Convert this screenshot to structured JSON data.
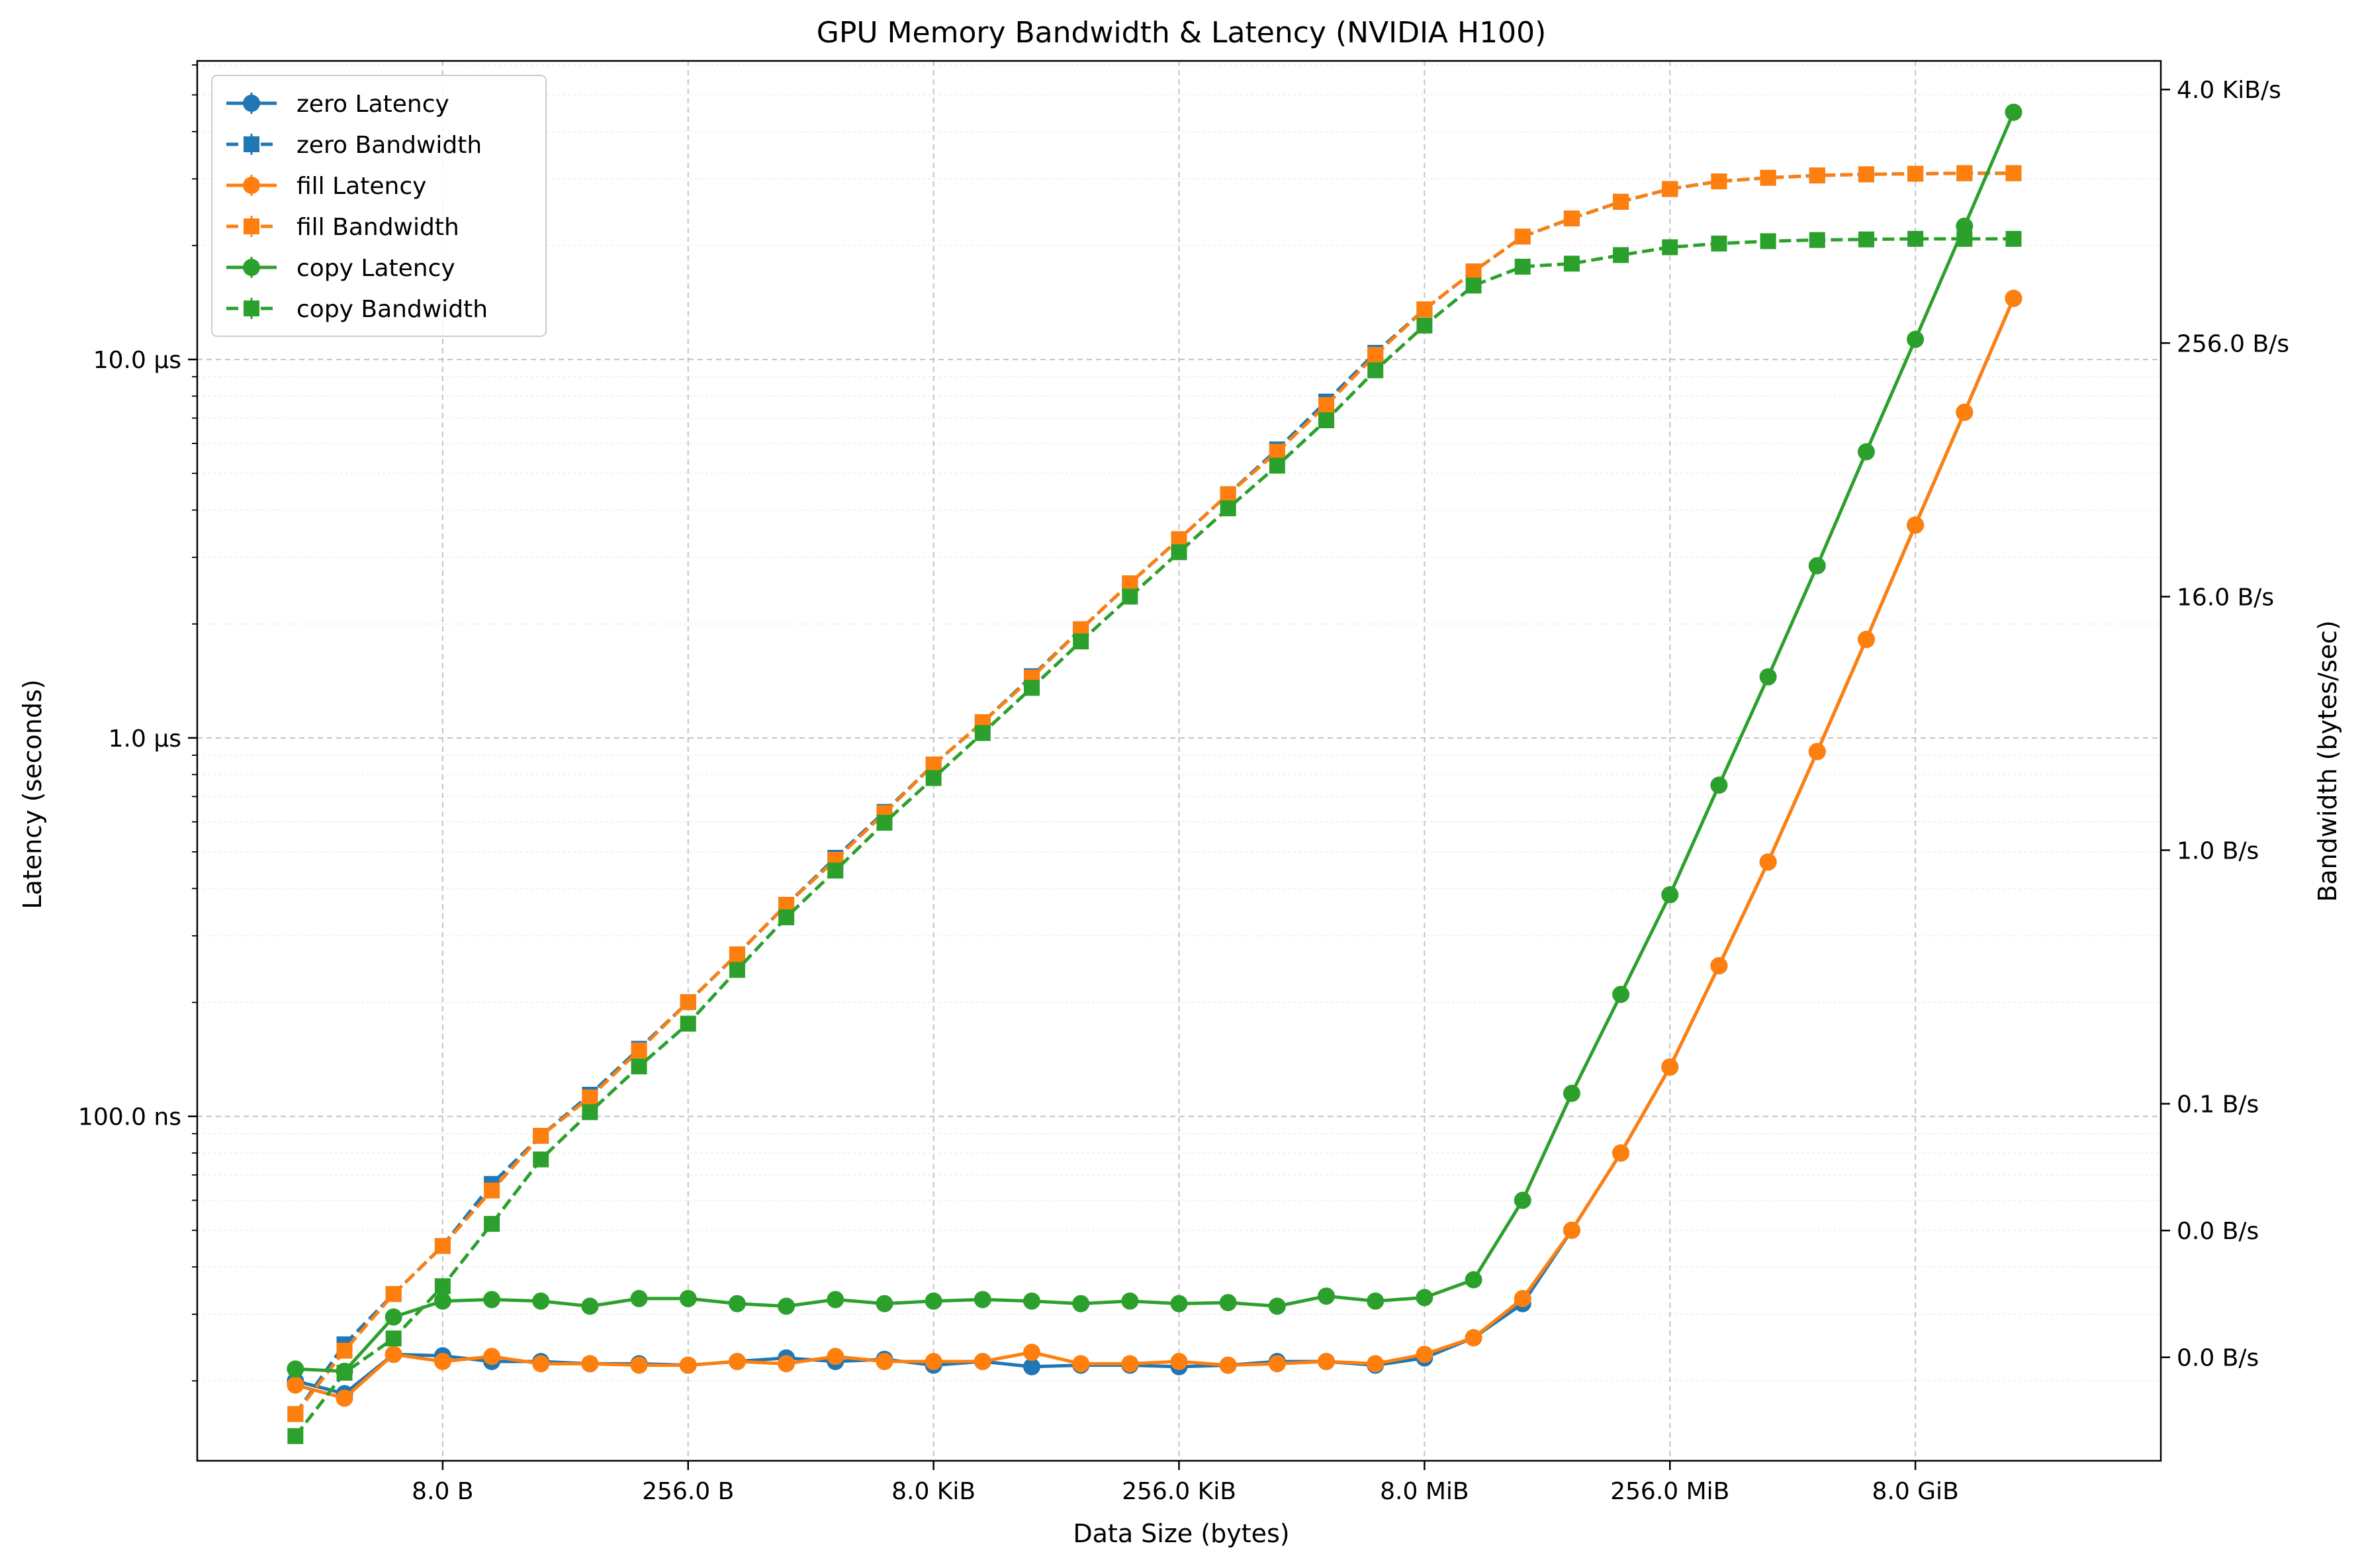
{
  "chart_data": {
    "type": "line",
    "title": "GPU Memory Bandwidth & Latency (NVIDIA H100)",
    "xlabel": "Data Size (bytes)",
    "ylabel_left": "Latency (seconds)",
    "ylabel_right": "Bandwidth (bytes/sec)",
    "x_scale": "log2",
    "x_unit": "bytes",
    "x_range": [
      0.25,
      274877906944
    ],
    "x_ticks": [
      {
        "value": 8,
        "label": "8.0 B"
      },
      {
        "value": 256,
        "label": "256.0 B"
      },
      {
        "value": 8192,
        "label": "8.0 KiB"
      },
      {
        "value": 262144,
        "label": "256.0 KiB"
      },
      {
        "value": 8388608,
        "label": "8.0 MiB"
      },
      {
        "value": 268435456,
        "label": "256.0 MiB"
      },
      {
        "value": 8589934592,
        "label": "8.0 GiB"
      }
    ],
    "y_left_scale": "log10",
    "y_left_unit": "seconds",
    "y_left_range": [
      1.23e-08,
      6.15e-05
    ],
    "y_left_ticks": [
      {
        "value": 1e-07,
        "label": "100.0 ns"
      },
      {
        "value": 1e-06,
        "label": "1.0 µs"
      },
      {
        "value": 1e-05,
        "label": "10.0 µs"
      }
    ],
    "y_right_scale": "log2",
    "y_right_unit": "bytes/sec",
    "y_right_range": [
      0.00126,
      5600
    ],
    "y_right_ticks": [
      {
        "value": 0.00390625,
        "label": "0.0 B/s"
      },
      {
        "value": 0.015625,
        "label": "0.0 B/s"
      },
      {
        "value": 0.0625,
        "label": "0.1 B/s"
      },
      {
        "value": 1,
        "label": "1.0 B/s"
      },
      {
        "value": 16,
        "label": "16.0 B/s"
      },
      {
        "value": 256,
        "label": "256.0 B/s"
      },
      {
        "value": 4096,
        "label": "4.0 KiB/s"
      }
    ],
    "grid": true,
    "legend": "top-left",
    "x": [
      1,
      2,
      4,
      8,
      16,
      32,
      64,
      128,
      256,
      512,
      1024,
      2048,
      4096,
      8192,
      16384,
      32768,
      65536,
      131072,
      262144,
      524288,
      1048576,
      2097152,
      4194304,
      8388608,
      16777216,
      33554432,
      67108864,
      134217728,
      268435456,
      536870912,
      1073741824,
      2147483648,
      4294967296,
      8589934592,
      17179869184,
      34359738368
    ],
    "series": [
      {
        "name": "zero Latency",
        "axis": "left",
        "color": "#1f77b4",
        "linestyle": "solid",
        "marker": "circle",
        "values": [
          2e-08,
          1.85e-08,
          2.35e-08,
          2.33e-08,
          2.25e-08,
          2.25e-08,
          2.22e-08,
          2.22e-08,
          2.2e-08,
          2.25e-08,
          2.3e-08,
          2.25e-08,
          2.28e-08,
          2.2e-08,
          2.25e-08,
          2.18e-08,
          2.2e-08,
          2.2e-08,
          2.18e-08,
          2.2e-08,
          2.25e-08,
          2.25e-08,
          2.2e-08,
          2.3e-08,
          2.6e-08,
          3.2e-08,
          5e-08,
          8e-08,
          1.35e-07,
          2.5e-07,
          4.7e-07,
          9.2e-07,
          1.82e-06,
          3.65e-06,
          7.25e-06,
          1.45e-05
        ]
      },
      {
        "name": "zero Bandwidth",
        "axis": "right",
        "color": "#1f77b4",
        "linestyle": "dashed",
        "marker": "square",
        "values": [
          0.0021,
          0.0045,
          0.0078,
          0.0132,
          0.026,
          0.044,
          0.069,
          0.114,
          0.19,
          0.32,
          0.55,
          0.92,
          1.52,
          2.55,
          4.05,
          6.7,
          11.2,
          18.5,
          30,
          49,
          80,
          135,
          230,
          370,
          560,
          820,
          1000,
          1200,
          1380,
          1500,
          1560,
          1600,
          1620,
          1630,
          1640,
          1640
        ]
      },
      {
        "name": "fill Latency",
        "axis": "left",
        "color": "#ff7f0e",
        "linestyle": "solid",
        "marker": "circle",
        "values": [
          1.95e-08,
          1.8e-08,
          2.35e-08,
          2.25e-08,
          2.32e-08,
          2.22e-08,
          2.22e-08,
          2.2e-08,
          2.2e-08,
          2.25e-08,
          2.22e-08,
          2.32e-08,
          2.25e-08,
          2.25e-08,
          2.25e-08,
          2.38e-08,
          2.22e-08,
          2.22e-08,
          2.25e-08,
          2.2e-08,
          2.22e-08,
          2.25e-08,
          2.22e-08,
          2.35e-08,
          2.6e-08,
          3.3e-08,
          5e-08,
          8e-08,
          1.35e-07,
          2.5e-07,
          4.7e-07,
          9.2e-07,
          1.82e-06,
          3.65e-06,
          7.25e-06,
          1.45e-05
        ]
      },
      {
        "name": "fill Bandwidth",
        "axis": "right",
        "color": "#ff7f0e",
        "linestyle": "dashed",
        "marker": "square",
        "values": [
          0.0021,
          0.0042,
          0.0078,
          0.0132,
          0.0242,
          0.044,
          0.067,
          0.112,
          0.19,
          0.32,
          0.55,
          0.9,
          1.5,
          2.55,
          4.05,
          6.6,
          11.2,
          18.5,
          30,
          49,
          78,
          130,
          225,
          370,
          560,
          820,
          1000,
          1200,
          1380,
          1500,
          1560,
          1600,
          1620,
          1630,
          1640,
          1640
        ]
      },
      {
        "name": "copy Latency",
        "axis": "left",
        "color": "#2ca02c",
        "linestyle": "solid",
        "marker": "circle",
        "values": [
          2.15e-08,
          2.12e-08,
          2.95e-08,
          3.25e-08,
          3.28e-08,
          3.25e-08,
          3.15e-08,
          3.3e-08,
          3.3e-08,
          3.2e-08,
          3.15e-08,
          3.28e-08,
          3.2e-08,
          3.25e-08,
          3.28e-08,
          3.25e-08,
          3.2e-08,
          3.25e-08,
          3.2e-08,
          3.22e-08,
          3.15e-08,
          3.35e-08,
          3.25e-08,
          3.32e-08,
          3.7e-08,
          6e-08,
          1.15e-07,
          2.1e-07,
          3.85e-07,
          7.5e-07,
          1.45e-06,
          2.85e-06,
          5.7e-06,
          1.13e-05,
          2.25e-05,
          4.5e-05
        ]
      },
      {
        "name": "copy Bandwidth",
        "axis": "right",
        "color": "#2ca02c",
        "linestyle": "dashed",
        "marker": "square",
        "values": [
          0.00165,
          0.0033,
          0.0048,
          0.0085,
          0.0168,
          0.034,
          0.057,
          0.094,
          0.15,
          0.27,
          0.48,
          0.8,
          1.35,
          2.2,
          3.6,
          5.9,
          9.8,
          16,
          26,
          42,
          67,
          110,
          190,
          310,
          480,
          590,
          610,
          670,
          730,
          760,
          780,
          790,
          795,
          800,
          800,
          800
        ]
      }
    ]
  }
}
